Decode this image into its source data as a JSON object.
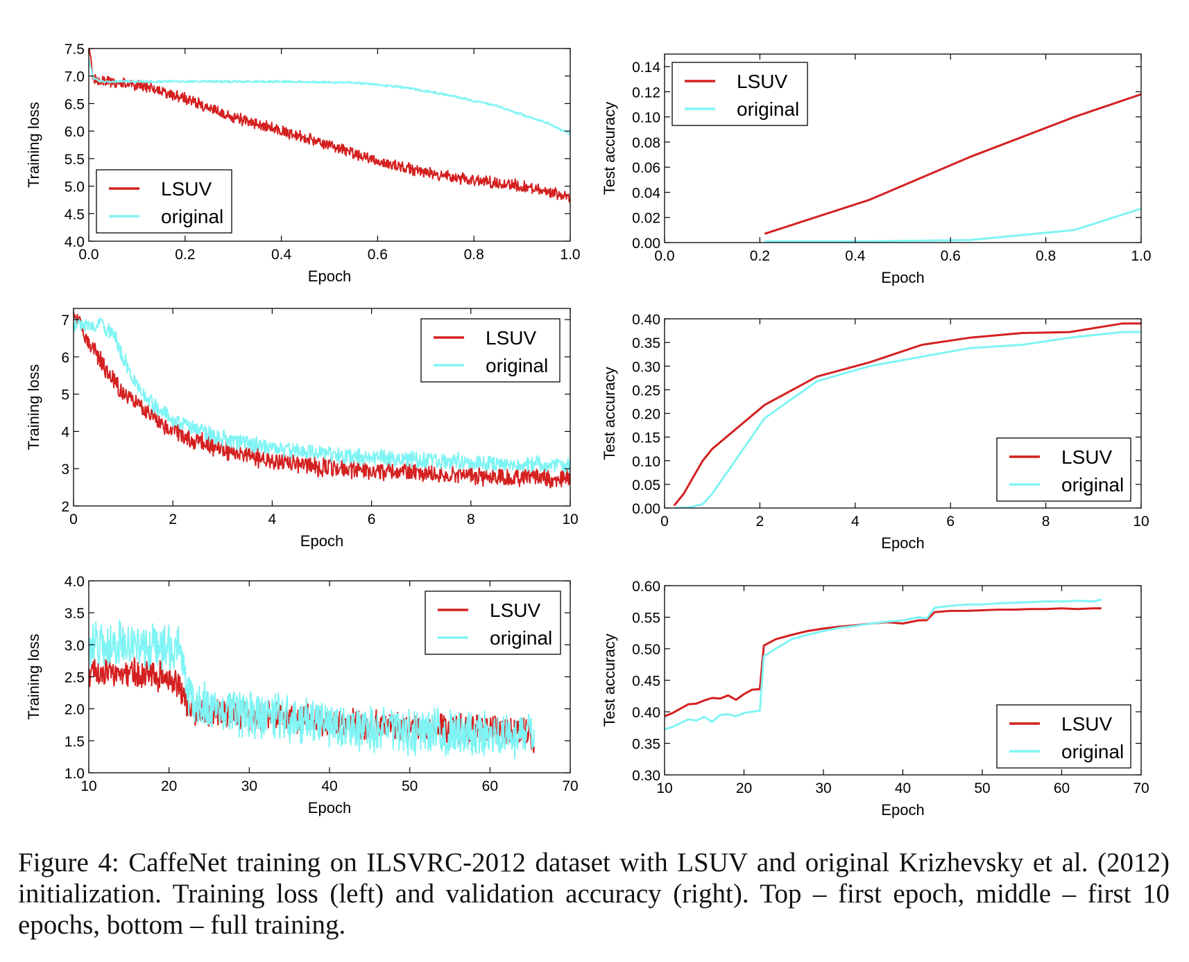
{
  "caption": "Figure 4: CaffeNet training on ILSVRC-2012 dataset with LSUV and original Krizhevsky et al. (2012) initialization. Training loss (left) and validation accuracy (right). Top – first epoch, middle – first 10 epochs, bottom – full training.",
  "colors": {
    "LSUV": "#d42020",
    "original": "#80f4f4",
    "axis": "#000000"
  },
  "chart_data": [
    {
      "id": "loss-first-epoch",
      "type": "line",
      "xlabel": "Epoch",
      "ylabel": "Training loss",
      "xlim": [
        0.0,
        1.0
      ],
      "ylim": [
        4.0,
        7.5
      ],
      "xticks": [
        "0.0",
        "0.2",
        "0.4",
        "0.6",
        "0.8",
        "1.0"
      ],
      "yticks": [
        "4.0",
        "4.5",
        "5.0",
        "5.5",
        "6.0",
        "6.5",
        "7.0",
        "7.5"
      ],
      "legend": "lower-left",
      "series": [
        {
          "name": "LSUV",
          "noise": 0.12,
          "x": [
            0,
            0.01,
            0.03,
            0.1,
            0.2,
            0.3,
            0.4,
            0.5,
            0.6,
            0.7,
            0.8,
            0.9,
            1.0
          ],
          "y": [
            7.5,
            6.95,
            6.9,
            6.85,
            6.6,
            6.25,
            6.0,
            5.75,
            5.45,
            5.25,
            5.1,
            5.0,
            4.8
          ]
        },
        {
          "name": "original",
          "noise": 0.025,
          "x": [
            0,
            0.01,
            0.03,
            0.2,
            0.4,
            0.55,
            0.65,
            0.75,
            0.85,
            0.95,
            1.0
          ],
          "y": [
            7.3,
            6.95,
            6.9,
            6.9,
            6.9,
            6.88,
            6.8,
            6.65,
            6.45,
            6.15,
            5.95
          ]
        }
      ]
    },
    {
      "id": "acc-first-epoch",
      "type": "line",
      "xlabel": "Epoch",
      "ylabel": "Test accuracy",
      "xlim": [
        0.0,
        1.0
      ],
      "ylim": [
        0.0,
        0.15
      ],
      "xticks": [
        "0.0",
        "0.2",
        "0.4",
        "0.6",
        "0.8",
        "1.0"
      ],
      "yticks": [
        "0.00",
        "0.02",
        "0.04",
        "0.06",
        "0.08",
        "0.10",
        "0.12",
        "0.14"
      ],
      "legend": "upper-left",
      "series": [
        {
          "name": "LSUV",
          "x": [
            0.21,
            0.43,
            0.64,
            0.86,
            1.0
          ],
          "y": [
            0.007,
            0.034,
            0.068,
            0.1,
            0.118
          ]
        },
        {
          "name": "original",
          "x": [
            0.21,
            0.43,
            0.64,
            0.86,
            1.0
          ],
          "y": [
            0.001,
            0.001,
            0.002,
            0.01,
            0.027
          ]
        }
      ]
    },
    {
      "id": "loss-first-10-epochs",
      "type": "line",
      "xlabel": "Epoch",
      "ylabel": "Training loss",
      "xlim": [
        0,
        10
      ],
      "ylim": [
        2,
        7.3
      ],
      "xticks": [
        "0",
        "2",
        "4",
        "6",
        "8",
        "10"
      ],
      "yticks": [
        "2",
        "3",
        "4",
        "5",
        "6",
        "7"
      ],
      "legend": "upper-right",
      "series": [
        {
          "name": "LSUV",
          "noise": 0.28,
          "x": [
            0,
            0.3,
            0.6,
            1,
            1.5,
            2,
            3,
            4,
            5,
            6,
            7,
            8,
            9,
            10
          ],
          "y": [
            7.2,
            6.4,
            5.8,
            5.0,
            4.5,
            4.0,
            3.5,
            3.2,
            3.05,
            2.95,
            2.9,
            2.82,
            2.78,
            2.75
          ]
        },
        {
          "name": "original",
          "noise": 0.25,
          "x": [
            0,
            0.5,
            0.8,
            1.2,
            1.6,
            2,
            3,
            4,
            5,
            6,
            7,
            8,
            9,
            10
          ],
          "y": [
            6.9,
            6.9,
            6.6,
            5.4,
            4.7,
            4.3,
            3.8,
            3.55,
            3.4,
            3.3,
            3.22,
            3.18,
            3.12,
            3.1
          ]
        }
      ]
    },
    {
      "id": "acc-first-10-epochs",
      "type": "line",
      "xlabel": "Epoch",
      "ylabel": "Test accuracy",
      "xlim": [
        0,
        10
      ],
      "ylim": [
        0.0,
        0.4
      ],
      "xticks": [
        "0",
        "2",
        "4",
        "6",
        "8",
        "10"
      ],
      "yticks": [
        "0.00",
        "0.05",
        "0.10",
        "0.15",
        "0.20",
        "0.25",
        "0.30",
        "0.35",
        "0.40"
      ],
      "legend": "lower-right",
      "series": [
        {
          "name": "LSUV",
          "x": [
            0.2,
            0.4,
            0.6,
            0.8,
            1.0,
            2.1,
            3.2,
            4.3,
            5.4,
            6.4,
            7.5,
            8.5,
            9.6,
            10
          ],
          "y": [
            0.005,
            0.03,
            0.065,
            0.1,
            0.125,
            0.218,
            0.278,
            0.308,
            0.345,
            0.36,
            0.37,
            0.372,
            0.39,
            0.39
          ]
        },
        {
          "name": "original",
          "x": [
            0.2,
            0.5,
            0.8,
            1.0,
            2.1,
            3.2,
            4.3,
            5.4,
            6.4,
            7.5,
            8.5,
            9.6,
            10
          ],
          "y": [
            0.0,
            0.001,
            0.008,
            0.03,
            0.19,
            0.268,
            0.3,
            0.32,
            0.338,
            0.345,
            0.36,
            0.372,
            0.372
          ]
        }
      ]
    },
    {
      "id": "loss-full-training",
      "type": "line",
      "xlabel": "Epoch",
      "ylabel": "Training loss",
      "xlim": [
        10,
        70
      ],
      "ylim": [
        1.0,
        4.0
      ],
      "xticks": [
        "10",
        "20",
        "30",
        "40",
        "50",
        "60",
        "70"
      ],
      "yticks": [
        "1.0",
        "1.5",
        "2.0",
        "2.5",
        "3.0",
        "3.5",
        "4.0"
      ],
      "legend": "upper-right",
      "series": [
        {
          "name": "LSUV",
          "noise": 0.26,
          "x": [
            10,
            15,
            20,
            21.2,
            22.5,
            25,
            30,
            35,
            40,
            45,
            50,
            55,
            60,
            65,
            65.5
          ],
          "y": [
            2.6,
            2.55,
            2.5,
            2.4,
            2.0,
            1.95,
            1.9,
            1.85,
            1.8,
            1.75,
            1.7,
            1.7,
            1.68,
            1.65,
            1.45
          ]
        },
        {
          "name": "original",
          "noise": 0.4,
          "x": [
            10,
            15,
            20,
            21.2,
            22.5,
            25,
            30,
            35,
            40,
            45,
            50,
            55,
            60,
            65,
            65.5
          ],
          "y": [
            3.0,
            3.0,
            2.95,
            2.9,
            2.2,
            2.0,
            1.9,
            1.85,
            1.75,
            1.68,
            1.65,
            1.62,
            1.6,
            1.6,
            1.55
          ]
        }
      ]
    },
    {
      "id": "acc-full-training",
      "type": "line",
      "xlabel": "Epoch",
      "ylabel": "Test accuracy",
      "xlim": [
        10,
        70
      ],
      "ylim": [
        0.3,
        0.6
      ],
      "xticks": [
        "10",
        "20",
        "30",
        "40",
        "50",
        "60",
        "70"
      ],
      "yticks": [
        "0.30",
        "0.35",
        "0.40",
        "0.45",
        "0.50",
        "0.55",
        "0.60"
      ],
      "legend": "lower-right",
      "series": [
        {
          "name": "LSUV",
          "x": [
            10,
            11,
            12,
            13,
            14,
            15,
            16,
            17,
            18,
            19,
            20,
            21,
            22,
            22.5,
            24,
            26,
            28,
            30,
            32,
            34,
            36,
            38,
            40,
            42,
            43,
            44,
            46,
            48,
            50,
            52,
            54,
            56,
            58,
            60,
            62,
            64,
            65
          ],
          "y": [
            0.393,
            0.398,
            0.405,
            0.412,
            0.413,
            0.418,
            0.422,
            0.421,
            0.426,
            0.419,
            0.428,
            0.435,
            0.436,
            0.505,
            0.515,
            0.522,
            0.528,
            0.532,
            0.535,
            0.537,
            0.54,
            0.542,
            0.54,
            0.545,
            0.545,
            0.558,
            0.56,
            0.56,
            0.561,
            0.562,
            0.562,
            0.563,
            0.563,
            0.564,
            0.563,
            0.564,
            0.564
          ]
        },
        {
          "name": "original",
          "x": [
            10,
            11,
            12,
            13,
            14,
            15,
            16,
            17,
            18,
            19,
            20,
            21,
            22,
            22.5,
            24,
            26,
            28,
            30,
            32,
            34,
            36,
            38,
            40,
            42,
            43,
            44,
            46,
            48,
            50,
            52,
            54,
            56,
            58,
            60,
            62,
            64,
            65
          ],
          "y": [
            0.372,
            0.376,
            0.382,
            0.388,
            0.386,
            0.392,
            0.384,
            0.395,
            0.396,
            0.393,
            0.398,
            0.4,
            0.402,
            0.488,
            0.5,
            0.515,
            0.522,
            0.528,
            0.533,
            0.536,
            0.54,
            0.543,
            0.545,
            0.55,
            0.548,
            0.565,
            0.568,
            0.57,
            0.57,
            0.572,
            0.573,
            0.574,
            0.575,
            0.575,
            0.576,
            0.575,
            0.578
          ]
        }
      ]
    }
  ]
}
